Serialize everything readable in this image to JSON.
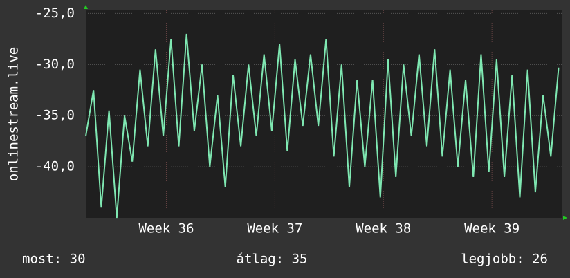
{
  "chart_data": {
    "type": "line",
    "y_label": "onlinestream.live",
    "x": [
      0,
      0.5,
      1,
      1.5,
      2,
      2.5,
      3,
      3.5,
      4,
      4.5,
      5,
      5.5,
      6,
      6.5,
      7,
      7.5,
      8,
      8.5,
      9,
      9.5,
      10,
      10.5,
      11,
      11.5,
      12,
      12.5,
      13,
      13.5,
      14,
      14.5,
      15,
      15.5,
      16,
      16.5,
      17,
      17.5,
      18,
      18.5,
      19,
      19.5,
      20,
      20.5,
      21,
      21.5,
      22,
      22.5,
      23,
      23.5,
      24,
      24.5,
      25,
      25.5,
      26,
      26.5,
      27,
      27.5,
      28,
      28.5,
      29,
      29.5,
      30,
      30.5
    ],
    "series": [
      {
        "color": "#7fe8b2",
        "values": [
          -37,
          -32.5,
          -44,
          -34.5,
          -45,
          -35,
          -39.5,
          -30.5,
          -38,
          -28.5,
          -37,
          -27.5,
          -38,
          -27,
          -36.5,
          -30,
          -40,
          -33,
          -42,
          -31,
          -38,
          -30,
          -37,
          -29,
          -36.5,
          -28,
          -38.5,
          -29.5,
          -36,
          -29,
          -36,
          -27.5,
          -39,
          -30,
          -42,
          -31.5,
          -40,
          -31.5,
          -43,
          -29.5,
          -41,
          -30,
          -37,
          -29,
          -38,
          -28.5,
          -39,
          -30.5,
          -40,
          -31.5,
          -41,
          -29,
          -40.5,
          -29.5,
          -41,
          -31,
          -43,
          -30.5,
          -42.5,
          -33,
          -39,
          -30.3
        ]
      }
    ],
    "xlim": [
      0,
      30.7
    ],
    "xticks": [
      {
        "value": 5.2,
        "label": "Week 36"
      },
      {
        "value": 12.2,
        "label": "Week 37"
      },
      {
        "value": 19.2,
        "label": "Week 38"
      },
      {
        "value": 26.2,
        "label": "Week 39"
      }
    ],
    "ylim": [
      -45,
      -24.7
    ],
    "yticks": [
      {
        "value": -25,
        "label": "-25,0"
      },
      {
        "value": -30,
        "label": "-30,0"
      },
      {
        "value": -35,
        "label": "-35,0"
      },
      {
        "value": -40,
        "label": "-40,0"
      }
    ],
    "grid": true,
    "stats": [
      "most: 30",
      "átlag: 35",
      "legjobb: 26"
    ]
  }
}
